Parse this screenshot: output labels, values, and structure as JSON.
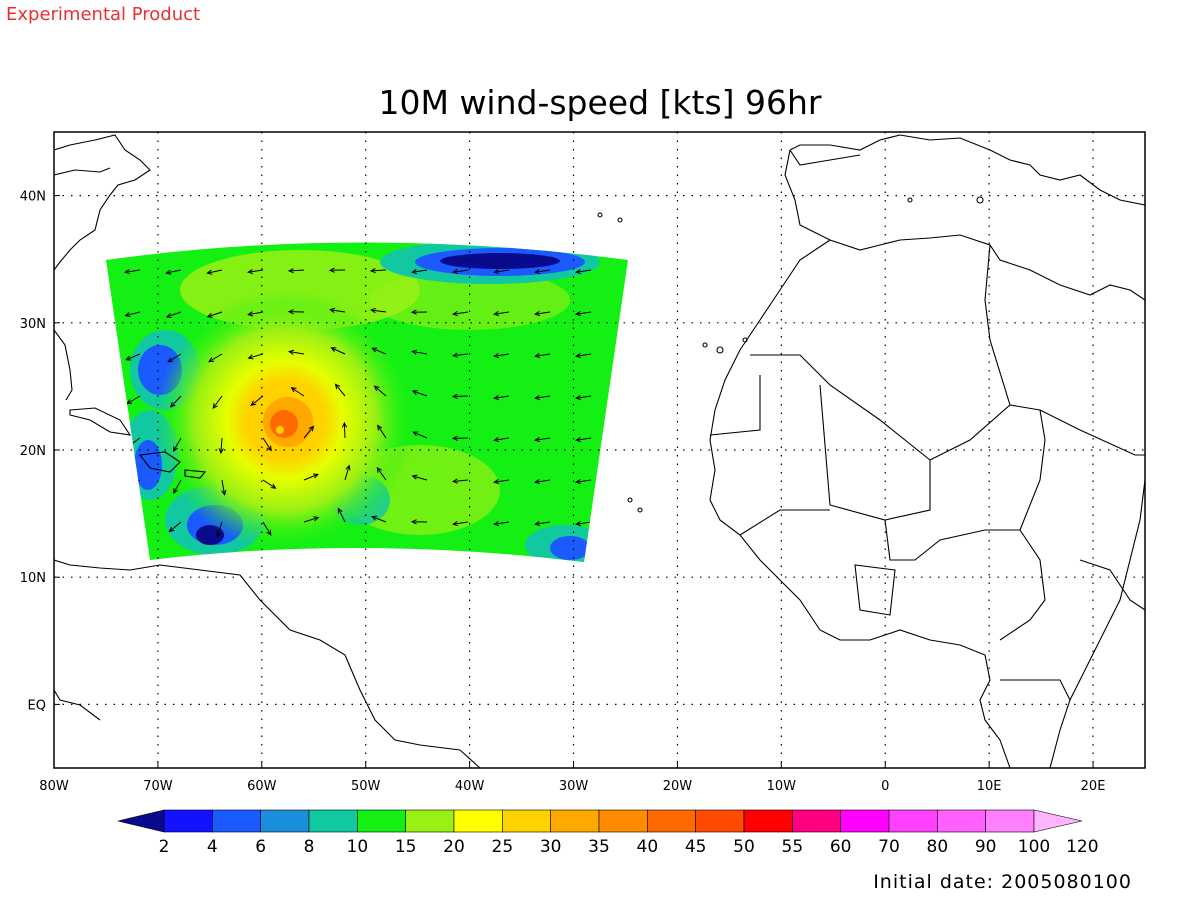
{
  "header": {
    "watermark": "Experimental Product",
    "title": "10M wind-speed [kts] 96hr",
    "footer": "Initial date: 2005080100"
  },
  "map": {
    "lon_ticks": [
      "80W",
      "70W",
      "60W",
      "50W",
      "40W",
      "30W",
      "20W",
      "10W",
      "0",
      "10E",
      "20E"
    ],
    "lat_ticks": [
      "40N",
      "30N",
      "20N",
      "10N",
      "EQ"
    ],
    "extent": {
      "lon_min": -80,
      "lon_max": 25,
      "lat_min": -5,
      "lat_max": 45
    }
  },
  "colorbar": {
    "labels": [
      "2",
      "4",
      "6",
      "8",
      "10",
      "15",
      "20",
      "25",
      "30",
      "35",
      "40",
      "45",
      "50",
      "55",
      "60",
      "70",
      "80",
      "90",
      "100",
      "120"
    ],
    "colors": [
      "#0a0a8c",
      "#1212ff",
      "#1a5aff",
      "#1c8fdc",
      "#12c8a0",
      "#14f014",
      "#99f014",
      "#ffff00",
      "#ffd200",
      "#ffa800",
      "#ff8c00",
      "#ff6a00",
      "#ff4a00",
      "#ff0000",
      "#ff0080",
      "#ff00ff",
      "#ff40ff",
      "#ff60ff",
      "#ff80ff",
      "#ffb4ff"
    ]
  },
  "colors": {
    "watermark": "#e83030",
    "frame": "#000000"
  }
}
